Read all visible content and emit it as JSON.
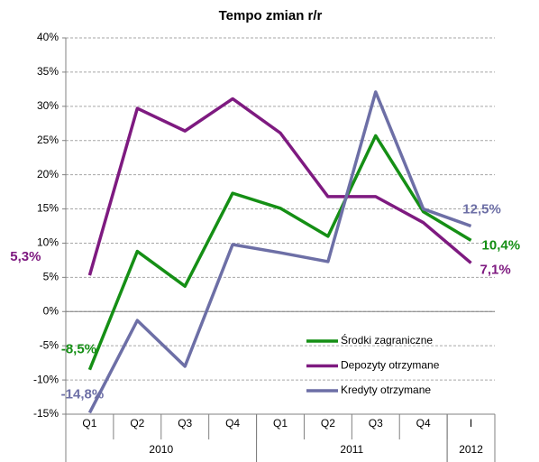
{
  "chart_data": {
    "type": "line",
    "title": "Tempo zmian r/r",
    "categories": [
      "Q1",
      "Q2",
      "Q3",
      "Q4",
      "Q1",
      "Q2",
      "Q3",
      "Q4",
      "I"
    ],
    "groups": [
      {
        "label": "2010",
        "span": 4
      },
      {
        "label": "2011",
        "span": 4
      },
      {
        "label": "2012",
        "span": 1
      }
    ],
    "series": [
      {
        "name": "Środki zagraniczne",
        "color": "#158f15",
        "values": [
          -8.5,
          8.8,
          3.7,
          17.3,
          15.1,
          11.0,
          25.7,
          14.6,
          10.4
        ],
        "value_labels": [
          "-8,5%",
          null,
          null,
          null,
          null,
          null,
          null,
          null,
          "10,4%"
        ]
      },
      {
        "name": "Depozyty otrzymane",
        "color": "#7e1a80",
        "values": [
          5.3,
          29.7,
          26.4,
          31.1,
          26.1,
          16.8,
          16.8,
          13.0,
          7.1
        ],
        "value_labels": [
          "5,3%",
          null,
          null,
          null,
          null,
          null,
          null,
          null,
          "7,1%"
        ]
      },
      {
        "name": "Kredyty otrzymane",
        "color": "#6d6fa6",
        "values": [
          -14.8,
          -1.3,
          -8.0,
          9.8,
          8.6,
          7.3,
          32.1,
          15.0,
          12.5
        ],
        "value_labels": [
          "-14,8%",
          null,
          null,
          null,
          null,
          null,
          null,
          null,
          "12,5%"
        ]
      }
    ],
    "ylim": [
      -15,
      40
    ],
    "yticks": [
      {
        "value": -15,
        "label": "-15%"
      },
      {
        "value": -10,
        "label": "-10%"
      },
      {
        "value": -5,
        "label": "-5%"
      },
      {
        "value": 0,
        "label": "0%"
      },
      {
        "value": 5,
        "label": "5%"
      },
      {
        "value": 10,
        "label": "10%"
      },
      {
        "value": 15,
        "label": "15%"
      },
      {
        "value": 20,
        "label": "20%"
      },
      {
        "value": 25,
        "label": "25%"
      },
      {
        "value": 30,
        "label": "30%"
      },
      {
        "value": 35,
        "label": "35%"
      },
      {
        "value": 40,
        "label": "40%"
      }
    ],
    "grid": true
  }
}
